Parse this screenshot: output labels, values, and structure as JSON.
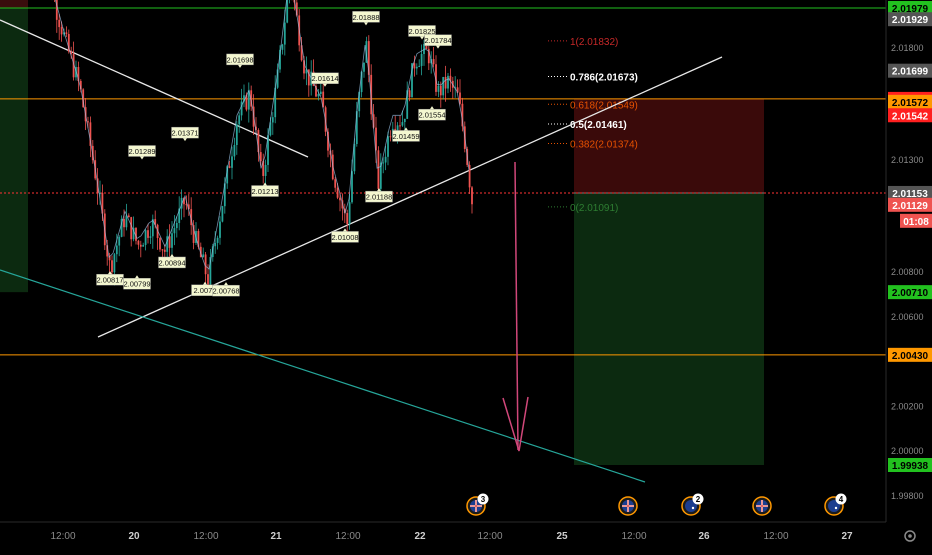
{
  "chart_data": {
    "type": "candlestick",
    "ylim": [
      1.99752,
      2.02055
    ],
    "price_axis": {
      "ticks": [
        "2.01800",
        "2.01300",
        "2.00800",
        "2.00600",
        "2.00200",
        "2.00000",
        "1.99800"
      ],
      "tick_values": [
        2.018,
        2.013,
        2.008,
        2.006,
        2.002,
        2.0,
        1.998
      ],
      "badges": [
        {
          "label": "2.01979",
          "value": 2.01979,
          "color": "#22c11f",
          "text_color": "#000000"
        },
        {
          "label": "2.01929",
          "value": 2.01929,
          "color": "#555555",
          "text_color": "#ffffff"
        },
        {
          "label": "2.01699",
          "value": 2.01699,
          "color": "#555555",
          "text_color": "#ffffff"
        },
        {
          "label": "2.01573",
          "value": 2.01573,
          "color": "#ff1f1f",
          "text_color": "#ffffff"
        },
        {
          "label": "2.01572",
          "value": 2.0156,
          "color": "#ff9800",
          "text_color": "#000000"
        },
        {
          "label": "2.01542",
          "value": 2.015,
          "color": "#ff1f1f",
          "text_color": "#ffffff"
        },
        {
          "label": "2.01153",
          "value": 2.01153,
          "color": "#555555",
          "text_color": "#ffffff"
        },
        {
          "label": "2.01129",
          "value": 2.011,
          "color": "#ef5350",
          "text_color": "#ffffff"
        },
        {
          "label": "2.00710",
          "value": 2.0071,
          "color": "#22c11f",
          "text_color": "#000000"
        },
        {
          "label": "2.00430",
          "value": 2.0043,
          "color": "#ff9800",
          "text_color": "#000000"
        },
        {
          "label": "1.99938",
          "value": 1.99938,
          "color": "#22c11f",
          "text_color": "#000000"
        }
      ],
      "countdown": "01:08"
    },
    "time_axis": {
      "labels": [
        "12:00",
        "20",
        "12:00",
        "21",
        "12:00",
        "22",
        "12:00",
        "25",
        "12:00",
        "26",
        "12:00",
        "27"
      ],
      "bold": [
        false,
        true,
        false,
        true,
        false,
        true,
        false,
        true,
        false,
        true,
        false,
        true
      ]
    },
    "fibonacci": [
      {
        "label": "1(2.01832)",
        "value": 2.01832,
        "color": "#c62828"
      },
      {
        "label": "0.786(2.01673)",
        "value": 2.01673,
        "color": "#ffffff"
      },
      {
        "label": "0.618(2.01549)",
        "value": 2.01549,
        "color": "#e65100"
      },
      {
        "label": "0.5(2.01461)",
        "value": 2.01461,
        "color": "#ffffff"
      },
      {
        "label": "0.382(2.01374)",
        "value": 2.01374,
        "color": "#e65100"
      },
      {
        "label": "0(2.01091)",
        "value": 2.01091,
        "color": "#2e7d32"
      }
    ],
    "horizontal_levels": [
      {
        "value": 2.01979,
        "color": "#22c11f",
        "style": "solid"
      },
      {
        "value": 2.01573,
        "color": "#ff9800",
        "style": "solid"
      },
      {
        "value": 2.0043,
        "color": "#ff9800",
        "style": "solid"
      },
      {
        "value": 2.01153,
        "color": "#ff3333",
        "style": "dotted"
      }
    ],
    "pivot_labels": [
      {
        "label": "2.01888",
        "value": 2.01888,
        "pos": "above"
      },
      {
        "label": "2.01825",
        "value": 2.01825,
        "pos": "above"
      },
      {
        "label": "2.01784",
        "value": 2.01784,
        "pos": "above"
      },
      {
        "label": "2.01698",
        "value": 2.01698,
        "pos": "above"
      },
      {
        "label": "2.01614",
        "value": 2.01614,
        "pos": "above"
      },
      {
        "label": "2.01371",
        "value": 2.01371,
        "pos": "above"
      },
      {
        "label": "2.01289",
        "value": 2.01289,
        "pos": "above"
      },
      {
        "label": "2.01554",
        "value": 2.01554,
        "pos": "below"
      },
      {
        "label": "2.01459",
        "value": 2.01459,
        "pos": "below"
      },
      {
        "label": "2.01213",
        "value": 2.01213,
        "pos": "below"
      },
      {
        "label": "2.01188",
        "value": 2.01188,
        "pos": "below"
      },
      {
        "label": "2.01008",
        "value": 2.01008,
        "pos": "below"
      },
      {
        "label": "2.00894",
        "value": 2.00894,
        "pos": "below"
      },
      {
        "label": "2.00817",
        "value": 2.00817,
        "pos": "below"
      },
      {
        "label": "2.00799",
        "value": 2.00799,
        "pos": "below"
      },
      {
        "label": "2.0077",
        "value": 2.0077,
        "pos": "below"
      },
      {
        "label": "2.00768",
        "value": 2.00768,
        "pos": "below"
      }
    ],
    "event_badges": [
      "3",
      "",
      "2",
      "",
      "4"
    ],
    "colors": {
      "up": "#26a69a",
      "down": "#ef5350",
      "background": "#000000"
    }
  }
}
